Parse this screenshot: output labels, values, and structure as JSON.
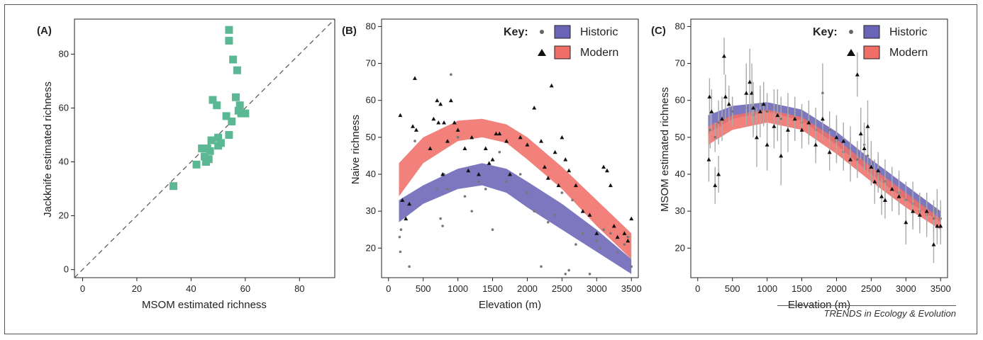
{
  "credit": "TRENDS in Ecology & Evolution",
  "colors": {
    "green": "#5bb894",
    "historic": "#6a64b6",
    "modern": "#ef6f68",
    "point": "#111111",
    "errorbar": "#aaaaaa"
  },
  "key": {
    "title": "Key:",
    "historic_label": "Historic",
    "modern_label": "Modern"
  },
  "chart_data": [
    {
      "panel": "(A)",
      "type": "scatter",
      "xlabel": "MSOM estimated richness",
      "ylabel": "Jackknife estimated richness",
      "xlim": [
        -3,
        93
      ],
      "ylim": [
        -3,
        93
      ],
      "xticks": [
        0,
        20,
        40,
        60,
        80
      ],
      "yticks": [
        0,
        20,
        40,
        60,
        80
      ],
      "reference_line": "1:1 dashed",
      "points": [
        [
          33.5,
          31
        ],
        [
          42,
          39
        ],
        [
          44,
          45
        ],
        [
          45,
          42
        ],
        [
          45.5,
          40
        ],
        [
          46,
          45
        ],
        [
          46.5,
          41
        ],
        [
          47,
          44
        ],
        [
          47.5,
          48
        ],
        [
          48,
          63
        ],
        [
          49.5,
          61
        ],
        [
          50,
          49
        ],
        [
          50,
          46
        ],
        [
          51,
          47
        ],
        [
          53,
          57
        ],
        [
          54,
          50
        ],
        [
          54,
          89
        ],
        [
          54,
          85
        ],
        [
          55,
          55
        ],
        [
          55.5,
          78
        ],
        [
          56.5,
          64
        ],
        [
          57,
          74
        ],
        [
          57.5,
          59
        ],
        [
          58,
          61
        ],
        [
          58.5,
          58
        ],
        [
          60,
          58
        ]
      ]
    },
    {
      "panel": "(B)",
      "type": "scatter",
      "xlabel": "Elevation (m)",
      "ylabel": "Naive richness",
      "xlim": [
        -100,
        3600
      ],
      "ylim": [
        12,
        82
      ],
      "xticks": [
        0,
        500,
        1000,
        1500,
        2000,
        2500,
        3000,
        3500
      ],
      "yticks": [
        20,
        30,
        40,
        50,
        60,
        70,
        80
      ],
      "bands": {
        "x": [
          150,
          500,
          1000,
          1350,
          1700,
          2000,
          2500,
          3000,
          3500
        ],
        "historic_lower": [
          27,
          32,
          36,
          37,
          35,
          31,
          25,
          19,
          13
        ],
        "historic_upper": [
          33,
          37,
          41.5,
          43,
          41.5,
          38,
          32,
          25,
          17
        ],
        "modern_lower": [
          34,
          43,
          49,
          50,
          48.5,
          44,
          36,
          26,
          17
        ],
        "modern_upper": [
          43,
          50,
          54.5,
          55,
          53.5,
          50,
          42,
          33,
          24
        ]
      },
      "historic_points": [
        [
          160,
          23
        ],
        [
          170,
          19
        ],
        [
          180,
          25
        ],
        [
          300,
          15
        ],
        [
          380,
          49
        ],
        [
          700,
          36
        ],
        [
          750,
          28
        ],
        [
          780,
          26
        ],
        [
          800,
          40
        ],
        [
          850,
          36
        ],
        [
          900,
          67
        ],
        [
          1000,
          50
        ],
        [
          1100,
          34
        ],
        [
          1200,
          30
        ],
        [
          1300,
          38
        ],
        [
          1400,
          36
        ],
        [
          1500,
          25
        ],
        [
          1600,
          46
        ],
        [
          1700,
          38
        ],
        [
          1900,
          40
        ],
        [
          2000,
          35
        ],
        [
          2100,
          30
        ],
        [
          2200,
          15
        ],
        [
          2300,
          27
        ],
        [
          2400,
          29
        ],
        [
          2500,
          35
        ],
        [
          2550,
          13
        ],
        [
          2600,
          14
        ],
        [
          2650,
          33
        ],
        [
          2700,
          21
        ],
        [
          2800,
          24
        ],
        [
          2900,
          13
        ],
        [
          3000,
          22
        ],
        [
          3050,
          20
        ],
        [
          3100,
          25
        ],
        [
          3200,
          24
        ],
        [
          3300,
          19
        ],
        [
          3400,
          21
        ],
        [
          3450,
          23
        ],
        [
          3500,
          15
        ]
      ],
      "modern_points": [
        [
          170,
          56
        ],
        [
          200,
          33
        ],
        [
          250,
          28
        ],
        [
          300,
          32
        ],
        [
          350,
          53
        ],
        [
          380,
          66
        ],
        [
          400,
          52
        ],
        [
          600,
          47
        ],
        [
          650,
          55
        ],
        [
          700,
          60
        ],
        [
          720,
          54
        ],
        [
          750,
          59
        ],
        [
          780,
          40
        ],
        [
          800,
          54
        ],
        [
          850,
          49
        ],
        [
          900,
          60
        ],
        [
          950,
          54
        ],
        [
          1000,
          52
        ],
        [
          1100,
          47
        ],
        [
          1150,
          41
        ],
        [
          1200,
          50
        ],
        [
          1300,
          40
        ],
        [
          1400,
          47
        ],
        [
          1450,
          43
        ],
        [
          1500,
          44
        ],
        [
          1550,
          51
        ],
        [
          1600,
          51
        ],
        [
          1700,
          49
        ],
        [
          1750,
          40
        ],
        [
          1900,
          50
        ],
        [
          2000,
          48
        ],
        [
          2100,
          58
        ],
        [
          2200,
          49
        ],
        [
          2250,
          42
        ],
        [
          2300,
          39
        ],
        [
          2350,
          64
        ],
        [
          2400,
          46
        ],
        [
          2450,
          37
        ],
        [
          2500,
          50
        ],
        [
          2550,
          44
        ],
        [
          2600,
          41
        ],
        [
          2700,
          37
        ],
        [
          2800,
          30
        ],
        [
          2900,
          29
        ],
        [
          3000,
          24
        ],
        [
          3100,
          42
        ],
        [
          3150,
          41
        ],
        [
          3200,
          37
        ],
        [
          3250,
          26
        ],
        [
          3300,
          23
        ],
        [
          3400,
          24
        ],
        [
          3450,
          22
        ],
        [
          3500,
          28
        ]
      ]
    },
    {
      "panel": "(C)",
      "type": "scatter",
      "xlabel": "Elevation (m)",
      "ylabel": "MSOM estimated richness",
      "xlim": [
        -100,
        3600
      ],
      "ylim": [
        12,
        82
      ],
      "xticks": [
        0,
        500,
        1000,
        1500,
        2000,
        2500,
        3000,
        3500
      ],
      "yticks": [
        20,
        30,
        40,
        50,
        60,
        70,
        80
      ],
      "bands": {
        "x": [
          150,
          500,
          1000,
          1500,
          2000,
          2500,
          3000,
          3500
        ],
        "historic_lower": [
          51,
          55,
          57,
          54.5,
          48,
          40,
          33,
          27
        ],
        "historic_upper": [
          56,
          58.5,
          59.5,
          57.5,
          51.5,
          44,
          37,
          30
        ],
        "modern_lower": [
          48,
          52,
          54,
          52,
          45.5,
          38,
          31,
          25
        ],
        "modern_upper": [
          53,
          56,
          57.5,
          55.5,
          49.5,
          42,
          35,
          28
        ]
      },
      "historic_points": [
        [
          180,
          52,
          5
        ],
        [
          250,
          50,
          4
        ],
        [
          300,
          54,
          6
        ],
        [
          500,
          57,
          4
        ],
        [
          700,
          58,
          5
        ],
        [
          800,
          56,
          6
        ],
        [
          900,
          59,
          4
        ],
        [
          1000,
          57,
          5
        ],
        [
          1100,
          58,
          5
        ],
        [
          1200,
          55,
          6
        ],
        [
          1300,
          57,
          5
        ],
        [
          1500,
          54,
          5
        ],
        [
          1700,
          52,
          6
        ],
        [
          1800,
          62,
          8
        ],
        [
          1900,
          52,
          5
        ],
        [
          2000,
          49,
          6
        ],
        [
          2100,
          46,
          5
        ],
        [
          2200,
          47,
          6
        ],
        [
          2300,
          44,
          5
        ],
        [
          2400,
          48,
          6
        ],
        [
          2450,
          45,
          5
        ],
        [
          2500,
          43,
          6
        ],
        [
          2600,
          40,
          5
        ],
        [
          2700,
          38,
          6
        ],
        [
          2800,
          36,
          5
        ],
        [
          2900,
          35,
          6
        ],
        [
          3000,
          33,
          5
        ],
        [
          3100,
          32,
          6
        ],
        [
          3200,
          30,
          5
        ],
        [
          3300,
          29,
          6
        ],
        [
          3400,
          28,
          5
        ],
        [
          3450,
          30,
          6
        ],
        [
          3500,
          28,
          5
        ]
      ],
      "modern_points": [
        [
          160,
          44,
          6
        ],
        [
          170,
          61,
          5
        ],
        [
          200,
          57,
          6
        ],
        [
          250,
          37,
          5
        ],
        [
          300,
          40,
          5
        ],
        [
          350,
          55,
          6
        ],
        [
          380,
          72,
          5
        ],
        [
          400,
          61,
          6
        ],
        [
          450,
          59,
          5
        ],
        [
          700,
          62,
          8
        ],
        [
          750,
          65,
          9
        ],
        [
          780,
          62,
          8
        ],
        [
          800,
          58,
          7
        ],
        [
          850,
          50,
          8
        ],
        [
          900,
          57,
          7
        ],
        [
          950,
          59,
          6
        ],
        [
          1000,
          48,
          7
        ],
        [
          1100,
          53,
          6
        ],
        [
          1150,
          56,
          7
        ],
        [
          1200,
          45,
          8
        ],
        [
          1300,
          52,
          6
        ],
        [
          1400,
          55,
          6
        ],
        [
          1500,
          52,
          5
        ],
        [
          1600,
          54,
          6
        ],
        [
          1700,
          48,
          5
        ],
        [
          1800,
          55,
          6
        ],
        [
          1900,
          46,
          5
        ],
        [
          2000,
          50,
          6
        ],
        [
          2100,
          49,
          5
        ],
        [
          2200,
          44,
          6
        ],
        [
          2300,
          67,
          6
        ],
        [
          2350,
          51,
          7
        ],
        [
          2400,
          47,
          6
        ],
        [
          2450,
          53,
          7
        ],
        [
          2500,
          42,
          5
        ],
        [
          2550,
          38,
          6
        ],
        [
          2600,
          41,
          5
        ],
        [
          2650,
          34,
          5
        ],
        [
          2700,
          33,
          5
        ],
        [
          2800,
          36,
          6
        ],
        [
          2900,
          34,
          5
        ],
        [
          3000,
          27,
          6
        ],
        [
          3100,
          30,
          5
        ],
        [
          3200,
          29,
          5
        ],
        [
          3300,
          30,
          5
        ],
        [
          3400,
          21,
          5
        ],
        [
          3450,
          26,
          5
        ],
        [
          3500,
          26,
          5
        ]
      ]
    }
  ]
}
